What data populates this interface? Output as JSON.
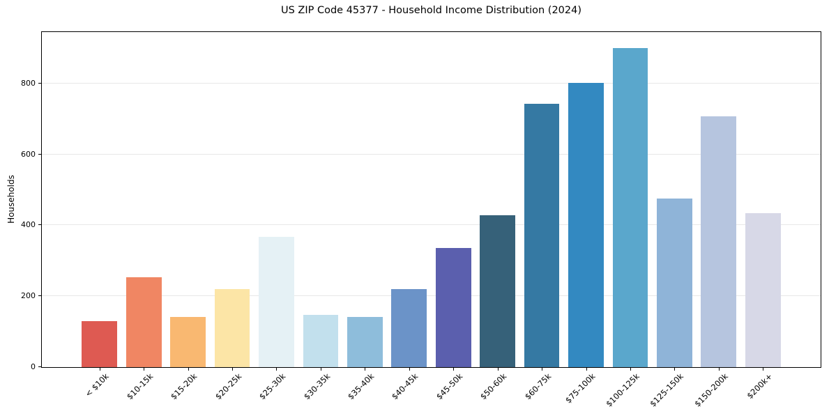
{
  "figure": {
    "title": "US ZIP Code 45377 - Household Income Distribution (2024)"
  },
  "chart_data": {
    "type": "bar",
    "title": "US ZIP Code 45377 - Household Income Distribution (2024)",
    "xlabel": "",
    "ylabel": "Households",
    "categories": [
      "< $10k",
      "$10-15k",
      "$15-20k",
      "$20-25k",
      "$25-30k",
      "$30-35k",
      "$35-40k",
      "$40-45k",
      "$45-50k",
      "$50-60k",
      "$60-75k",
      "$75-100k",
      "$100-125k",
      "$125-150k",
      "$150-200k",
      "$200k+"
    ],
    "values": [
      130,
      254,
      142,
      220,
      368,
      147,
      142,
      220,
      336,
      428,
      743,
      801,
      900,
      475,
      708,
      434
    ],
    "bar_colors": [
      "#de5a52",
      "#f08663",
      "#f9b871",
      "#fce5a6",
      "#e5f1f5",
      "#c2e0ed",
      "#8ebddb",
      "#6b93c8",
      "#5b5fae",
      "#366179",
      "#3579a3",
      "#3389c1",
      "#5aa7cc",
      "#8fb4d8",
      "#b6c5df",
      "#d7d8e7"
    ],
    "yticks": [
      0,
      200,
      400,
      600,
      800
    ],
    "ylim": [
      0,
      945
    ],
    "grid": "horizontal",
    "grid_color": "#e8e8e8",
    "axis_color": "#000000",
    "background": "#ffffff",
    "legend": "none",
    "x_label_rotation_deg": 45
  }
}
